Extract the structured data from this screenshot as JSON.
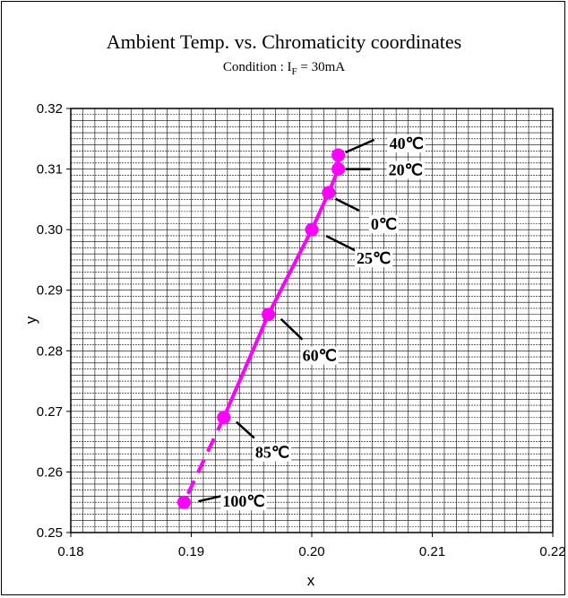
{
  "chart_data": {
    "type": "line",
    "title": "Ambient Temp. vs. Chromaticity coordinates",
    "subtitle": {
      "prefix": "Condition : I",
      "subscript": "F",
      "suffix": " = 30mA"
    },
    "xlabel": "x",
    "ylabel": "y",
    "xlim": [
      0.18,
      0.22
    ],
    "ylim": [
      0.25,
      0.32
    ],
    "x_ticks": [
      "0.18",
      "0.19",
      "0.20",
      "0.21",
      "0.22"
    ],
    "y_ticks": [
      "0.25",
      "0.26",
      "0.27",
      "0.28",
      "0.29",
      "0.30",
      "0.31",
      "0.32"
    ],
    "grid": true,
    "series_color": "#ff00ff",
    "points": [
      {
        "label": "40℃",
        "x": 0.2022,
        "y": 0.3123
      },
      {
        "label": "20℃",
        "x": 0.2022,
        "y": 0.31
      },
      {
        "label": "0℃",
        "x": 0.2014,
        "y": 0.3061
      },
      {
        "label": "25℃",
        "x": 0.2,
        "y": 0.3
      },
      {
        "label": "60℃",
        "x": 0.1964,
        "y": 0.286
      },
      {
        "label": "85℃",
        "x": 0.1927,
        "y": 0.269
      },
      {
        "label": "100℃",
        "x": 0.1894,
        "y": 0.255
      }
    ],
    "solid_segment_last_index": 5
  }
}
